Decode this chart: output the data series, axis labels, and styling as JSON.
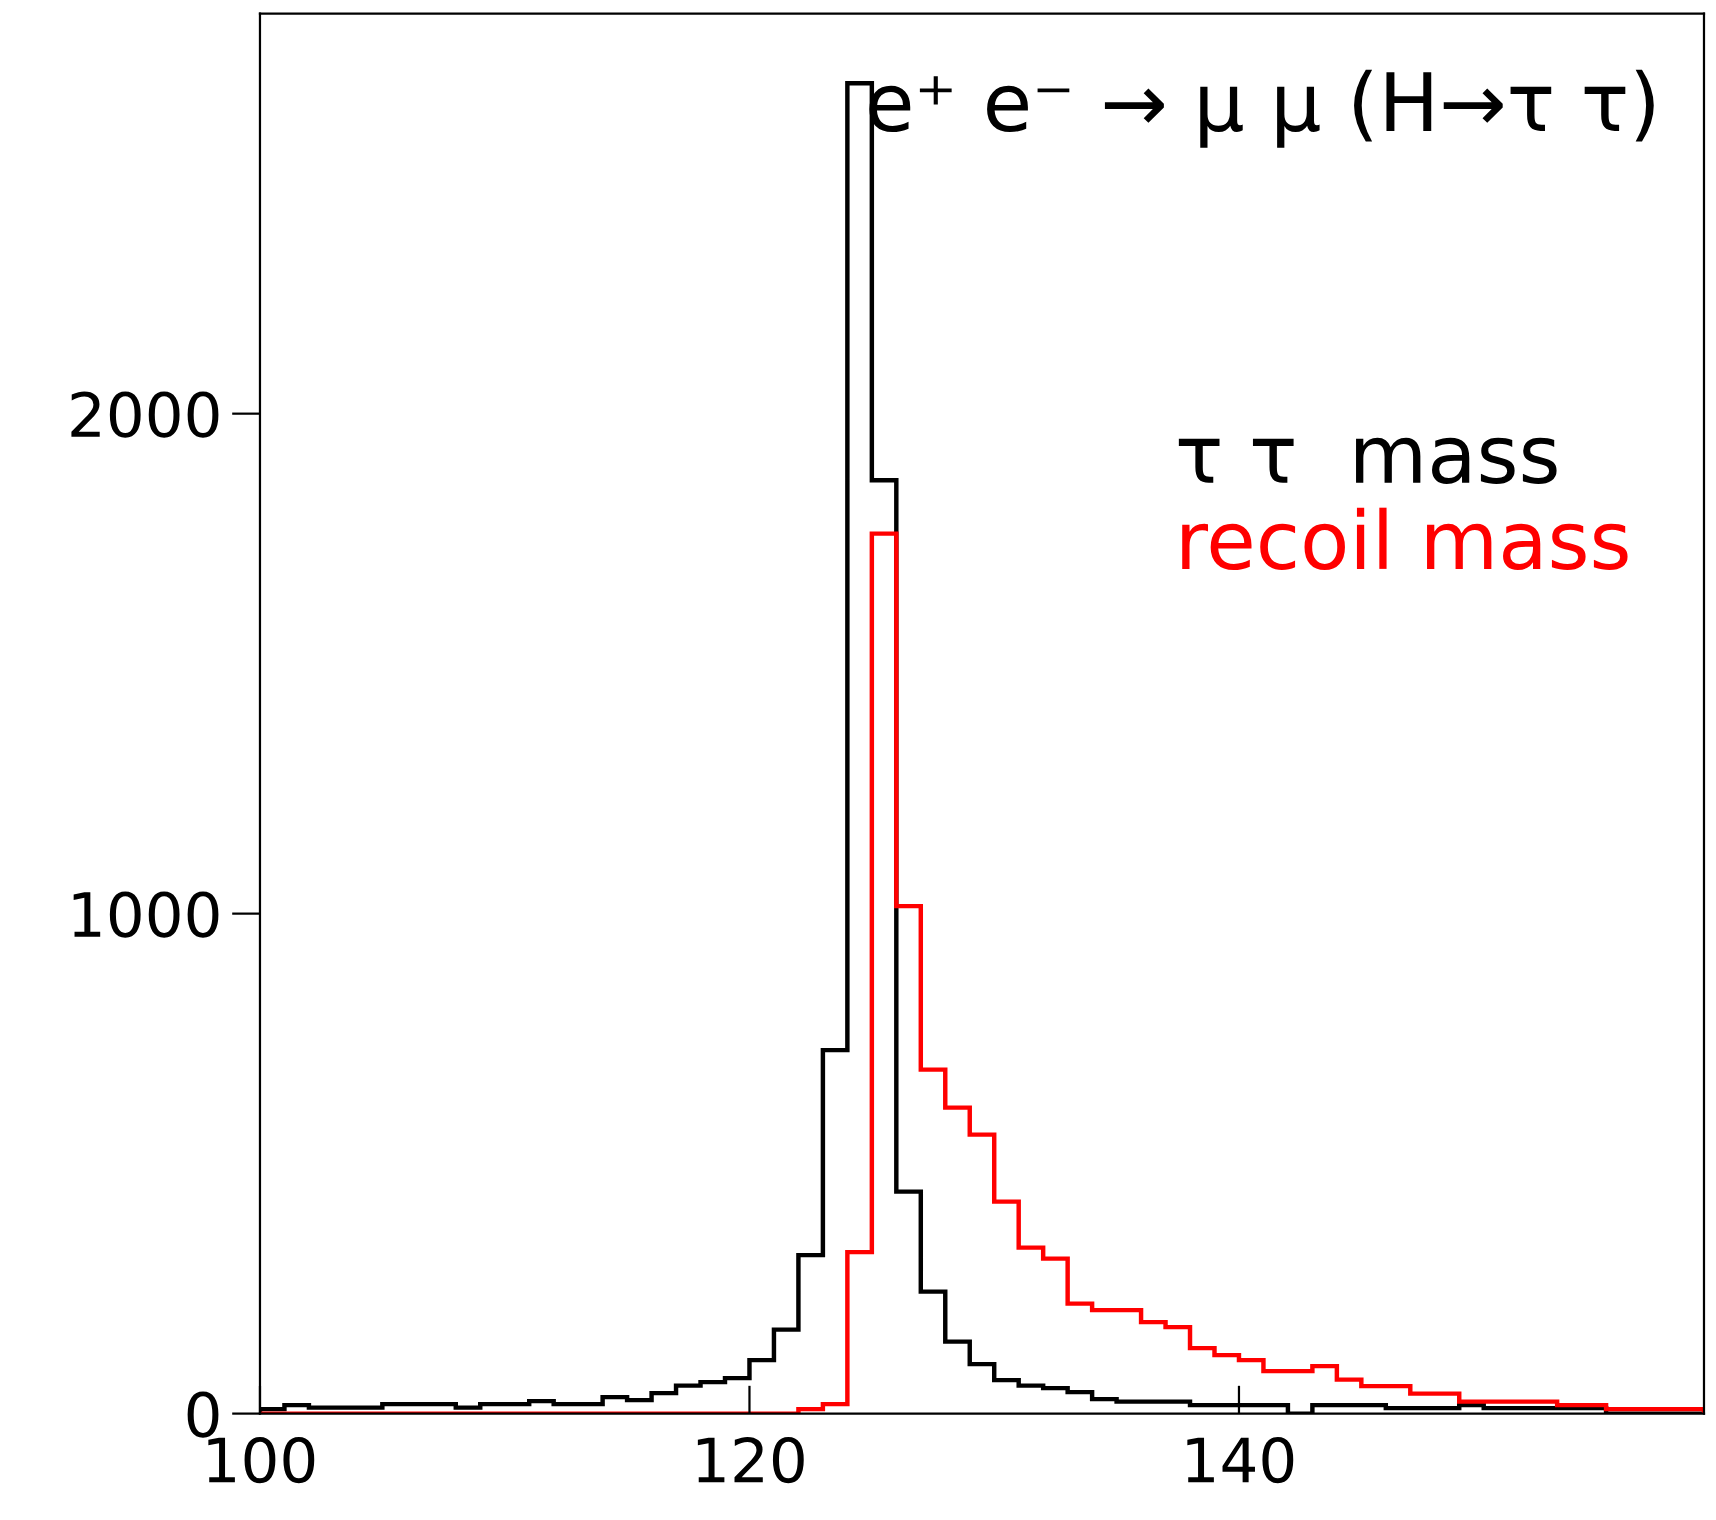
{
  "chart_data": {
    "type": "histogram",
    "title": "e⁺ e⁻ → μ μ (H→τ τ)",
    "bins": [
      100,
      101,
      102,
      103,
      104,
      105,
      106,
      107,
      108,
      109,
      110,
      111,
      112,
      113,
      114,
      115,
      116,
      117,
      118,
      119,
      120,
      121,
      122,
      123,
      124,
      125,
      126,
      127,
      128,
      129,
      130,
      131,
      132,
      133,
      134,
      135,
      136,
      137,
      138,
      139,
      140,
      141,
      142,
      143,
      144,
      145,
      146,
      147,
      148,
      149,
      150,
      151,
      152,
      153,
      154,
      155,
      156,
      157,
      158,
      159
    ],
    "series": [
      {
        "name": "τ τ  mass",
        "color": "#000000",
        "values": [
          9,
          17,
          12,
          12,
          12,
          19,
          19,
          19,
          12,
          19,
          19,
          25,
          19,
          19,
          33,
          27,
          41,
          56,
          63,
          71,
          107,
          168,
          317,
          727,
          2661,
          1867,
          444,
          244,
          144,
          99,
          67,
          56,
          51,
          43,
          29,
          24,
          24,
          24,
          17,
          17,
          17,
          17,
          0,
          17,
          17,
          17,
          11,
          11,
          11,
          17,
          11,
          11,
          11,
          11,
          11,
          0,
          0,
          0,
          0
        ]
      },
      {
        "name": "recoil mass",
        "color": "#ff0000",
        "values": [
          0,
          0,
          0,
          0,
          0,
          0,
          0,
          0,
          0,
          0,
          0,
          0,
          0,
          0,
          0,
          0,
          0,
          0,
          0,
          0,
          0,
          0,
          9,
          19,
          323,
          1760,
          1015,
          688,
          612,
          558,
          424,
          332,
          310,
          220,
          207,
          207,
          183,
          173,
          131,
          117,
          107,
          85,
          85,
          95,
          68,
          55,
          55,
          40,
          40,
          24,
          24,
          24,
          24,
          17,
          17,
          9,
          9,
          9,
          9
        ]
      }
    ],
    "xlim": [
      100,
      159
    ],
    "ylim": [
      0,
      2800
    ],
    "xticks": [
      100,
      120,
      140
    ],
    "yticks": [
      0,
      1000,
      2000
    ],
    "grid": false,
    "legend": "right"
  }
}
